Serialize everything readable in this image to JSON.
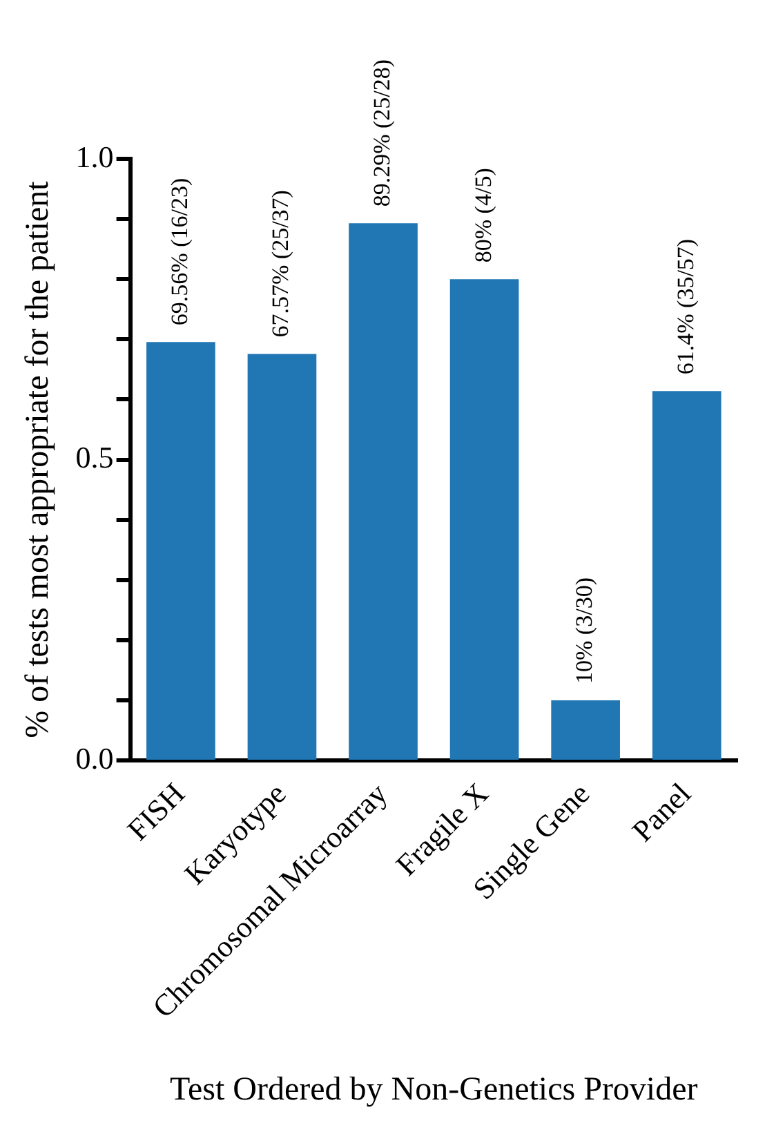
{
  "chart_data": {
    "type": "bar",
    "xlabel": "Test Ordered by Non-Genetics Provider",
    "ylabel": "% of tests most appropriate for the patient",
    "categories": [
      "FISH",
      "Karyotype",
      "Chromosomal Microarray",
      "Fragile X",
      "Single Gene",
      "Panel"
    ],
    "values": [
      0.6956,
      0.6757,
      0.8929,
      0.8,
      0.1,
      0.614
    ],
    "value_labels": [
      "69.56% (16/23)",
      "67.57% (25/37)",
      "89.29% (25/28)",
      "80% (4/5)",
      "10% (3/30)",
      "61.4% (35/57)"
    ],
    "color": "#2077b4",
    "ylim": [
      0,
      1
    ],
    "yticks": [
      {
        "value": 0,
        "label": "0.0"
      },
      {
        "value": 0.1,
        "label": null
      },
      {
        "value": 0.2,
        "label": null
      },
      {
        "value": 0.3,
        "label": null
      },
      {
        "value": 0.4,
        "label": null
      },
      {
        "value": 0.5,
        "label": "0.5"
      },
      {
        "value": 0.6,
        "label": null
      },
      {
        "value": 0.7,
        "label": null
      },
      {
        "value": 0.8,
        "label": null
      },
      {
        "value": 0.9,
        "label": null
      },
      {
        "value": 1,
        "label": "1.0"
      }
    ],
    "grid": false,
    "legend": false
  }
}
